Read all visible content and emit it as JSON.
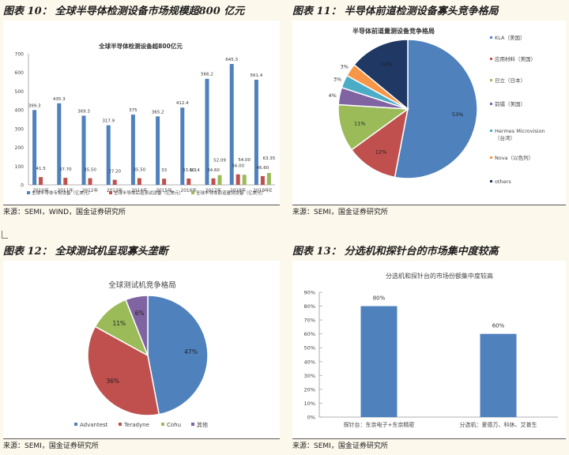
{
  "panels": [
    {
      "fig_label": "图表 10：",
      "title": "全球半导体检测设备市场规模超800 亿元",
      "source": "来源：SEMI，WIND，国金证券研究所"
    },
    {
      "fig_label": "图表 11：",
      "title": "半导体前道检测设备寡头竞争格局",
      "source": "来源：SEMI，国金证券研究所"
    },
    {
      "fig_label": "图表 12：",
      "title": "全球测试机呈现寡头垄断",
      "source": "来源：SEMI，国金证券研究所"
    },
    {
      "fig_label": "图表 13：",
      "title": "分选机和探针台的市场集中度较高",
      "source": "来源：SEMI，国金证券研究所"
    }
  ],
  "chart_data": [
    {
      "type": "bar",
      "title": "全球半导体检测设备超800亿元",
      "categories": [
        "2010年",
        "2011年",
        "2012年",
        "2013年",
        "2014年",
        "2015年",
        "2016年",
        "2017年",
        "2018年",
        "2019年E"
      ],
      "ylim": [
        0,
        700
      ],
      "yticks": [
        0,
        100,
        200,
        300,
        400,
        500,
        600,
        700
      ],
      "series": [
        {
          "name": "全球半导体专用设备（亿美元）",
          "color": "#4f81bd",
          "values": [
            399.3,
            435.3,
            369.3,
            317.9,
            375,
            365.2,
            412.4,
            566.2,
            645.3,
            561.4
          ],
          "labels": [
            "399.3",
            "435.3",
            "369.3",
            "317.9",
            "375",
            "365.2",
            "412.4",
            "566.2",
            "645.3",
            "561.4"
          ]
        },
        {
          "name": "全球半导体后道测试设备（亿美元）",
          "color": "#c0504d",
          "values": [
            41.5,
            37.7,
            35.5,
            27.2,
            35.5,
            33,
            33.6,
            34.6,
            56,
            46.6
          ],
          "labels": [
            "41.5",
            "37.70",
            "35.50",
            "27.20",
            "35.50",
            "33",
            "33.60",
            "34.60",
            "56.00",
            "46.60"
          ]
        },
        {
          "name": "全球半导体前道量测设备（亿美元）",
          "color": "#9bbb59",
          "values": [
            null,
            null,
            null,
            null,
            null,
            null,
            0.14,
            52.09,
            54,
            63.35
          ],
          "labels": [
            "",
            "",
            "",
            "",
            "",
            "",
            "0.14",
            "52.09",
            "54.00",
            "63.35"
          ]
        }
      ]
    },
    {
      "type": "pie",
      "title": "半导体前道量测设备竞争格局",
      "slices": [
        {
          "name": "KLA（美国）",
          "value": 53,
          "label": "53%",
          "color": "#4f81bd"
        },
        {
          "name": "应用材料（美国）",
          "value": 12,
          "label": "12%",
          "color": "#c0504d"
        },
        {
          "name": "日立（日本）",
          "value": 11,
          "label": "11%",
          "color": "#9bbb59"
        },
        {
          "name": "前镭（美国）",
          "value": 4,
          "label": "4%",
          "color": "#8064a2"
        },
        {
          "name": "Hermes Microvision（台湾）",
          "value": 3,
          "label": "3%",
          "color": "#4bacc6"
        },
        {
          "name": "Nova（以色列）",
          "value": 3,
          "label": "3%",
          "color": "#f79646"
        },
        {
          "name": "others",
          "value": 14,
          "label": "14%",
          "color": "#1f3864"
        }
      ]
    },
    {
      "type": "pie",
      "title": "全球测试机竞争格局",
      "slices": [
        {
          "name": "Advantest",
          "value": 47,
          "label": "47%",
          "color": "#4f81bd"
        },
        {
          "name": "Teradyne",
          "value": 36,
          "label": "36%",
          "color": "#c0504d"
        },
        {
          "name": "Cohu",
          "value": 11,
          "label": "11%",
          "color": "#9bbb59"
        },
        {
          "name": "其他",
          "value": 6,
          "label": "6%",
          "color": "#8064a2"
        }
      ]
    },
    {
      "type": "bar",
      "title": "分选机和探针台的市场份额集中度较高",
      "categories": [
        "探针台：东京电子+东京精密",
        "分选机：爱德万、科休、艾普生"
      ],
      "values": [
        80,
        60
      ],
      "labels": [
        "80%",
        "60%"
      ],
      "ylim": [
        0,
        90
      ],
      "yticks": [
        "0%",
        "10%",
        "20%",
        "30%",
        "40%",
        "50%",
        "60%",
        "70%",
        "80%",
        "90%"
      ],
      "color": "#4f81bd"
    }
  ]
}
